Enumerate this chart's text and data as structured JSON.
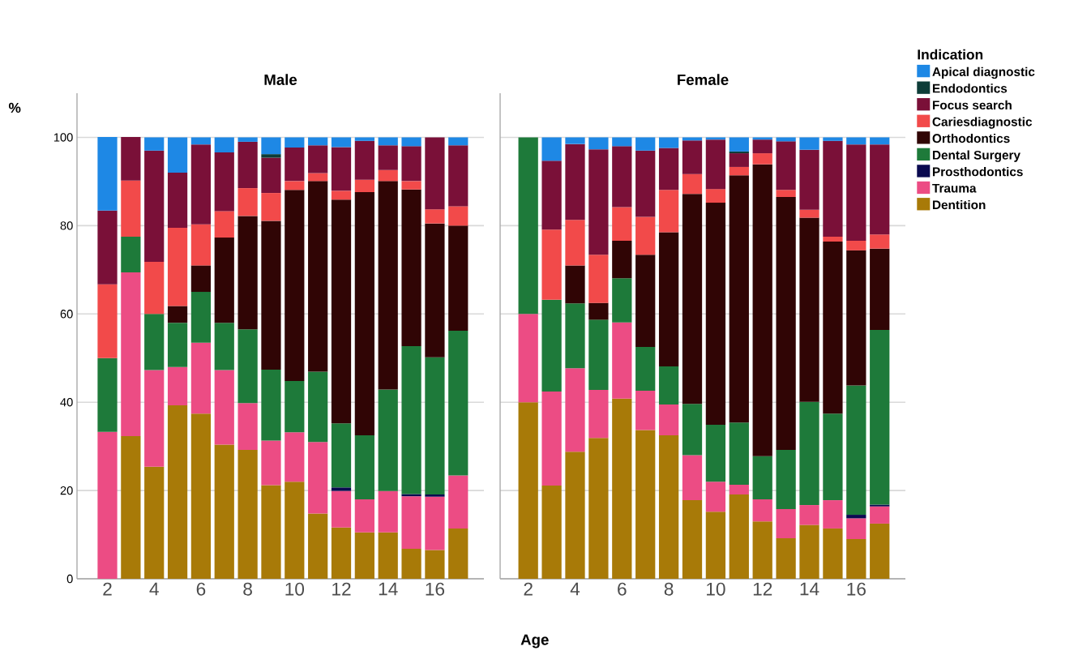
{
  "chart_data": [
    {
      "type": "bar",
      "stacked": true,
      "title": "Male",
      "xlabel": "Age",
      "ylabel": "%",
      "categories": [
        "2",
        null,
        "4",
        null,
        "6",
        null,
        "8",
        null,
        "10",
        null,
        "12",
        null,
        "14",
        null,
        "16",
        null
      ],
      "ylim": [
        0,
        110
      ],
      "yticks": [
        0,
        20,
        40,
        60,
        80,
        100
      ],
      "grid": "y",
      "series": [
        {
          "color": "#a87a08",
          "values": [
            null,
            32.3,
            25.4,
            39.3,
            37.4,
            30.4,
            29.2,
            21.2,
            22.0,
            14.8,
            11.6,
            10.5,
            10.5,
            6.8,
            6.5,
            11.4
          ]
        },
        {
          "color": "#ec4c84",
          "values": [
            33.3,
            37.1,
            21.9,
            8.7,
            16.1,
            16.9,
            10.6,
            10.1,
            11.2,
            16.2,
            8.3,
            7.5,
            9.4,
            11.9,
            12.1,
            12.0
          ]
        },
        {
          "color": "#0a0a50",
          "values": [
            null,
            null,
            null,
            null,
            null,
            null,
            null,
            null,
            null,
            null,
            0.8,
            null,
            null,
            0.5,
            0.5,
            null
          ]
        },
        {
          "color": "#1e7a3a",
          "values": [
            16.7,
            8.1,
            12.7,
            10.0,
            11.5,
            10.7,
            16.7,
            16.1,
            11.6,
            15.9,
            14.5,
            14.5,
            23.0,
            33.5,
            31.1,
            32.8
          ]
        },
        {
          "color": "#300505",
          "values": [
            null,
            null,
            null,
            3.8,
            6.0,
            19.3,
            25.7,
            33.7,
            43.3,
            43.2,
            50.7,
            55.1,
            47.2,
            35.5,
            30.3,
            23.8
          ]
        },
        {
          "color": "#f24a4a",
          "values": [
            16.7,
            12.7,
            11.8,
            17.7,
            9.3,
            6.0,
            6.3,
            6.3,
            2.0,
            1.8,
            2.0,
            2.8,
            2.5,
            1.9,
            3.2,
            4.4
          ]
        },
        {
          "color": "#7a1038",
          "values": [
            16.7,
            9.9,
            25.2,
            12.5,
            18.1,
            13.3,
            10.5,
            8.0,
            7.6,
            6.3,
            9.9,
            8.8,
            5.6,
            7.9,
            16.3,
            13.8
          ]
        },
        {
          "color": "#0d3d38",
          "values": [
            null,
            null,
            null,
            null,
            null,
            null,
            null,
            0.8,
            null,
            null,
            null,
            null,
            null,
            null,
            null,
            null
          ]
        },
        {
          "color": "#1e88e5",
          "values": [
            16.7,
            null,
            3.0,
            8.0,
            1.6,
            3.4,
            1.0,
            3.8,
            2.3,
            1.8,
            2.2,
            0.8,
            1.8,
            2.0,
            null,
            1.8
          ]
        }
      ]
    },
    {
      "type": "bar",
      "stacked": true,
      "title": "Female",
      "legend_title": "Indication",
      "legend": "right",
      "tick_labels": "x",
      "categories": [
        "2",
        null,
        "4",
        null,
        "6",
        null,
        "8",
        null,
        "10",
        null,
        "12",
        null,
        "14",
        null,
        "16",
        null
      ],
      "ylim": [
        0,
        110
      ],
      "yticks": [
        0,
        20,
        40,
        60,
        80,
        100
      ],
      "grid": "y",
      "series": [
        {
          "name": "Dentition",
          "color": "#a87a08",
          "values": [
            40.0,
            21.1,
            28.8,
            31.9,
            40.8,
            33.7,
            32.5,
            17.8,
            15.2,
            19.1,
            13.0,
            9.2,
            12.2,
            11.4,
            9.0,
            12.5
          ]
        },
        {
          "name": "Trauma",
          "color": "#ec4c84",
          "values": [
            20.0,
            21.3,
            18.9,
            10.9,
            17.3,
            8.9,
            7.0,
            10.2,
            6.8,
            2.2,
            5.0,
            6.6,
            4.5,
            6.4,
            4.7,
            3.9
          ]
        },
        {
          "name": "Prosthodontics",
          "color": "#0a0a50",
          "values": [
            null,
            null,
            null,
            null,
            null,
            null,
            null,
            null,
            null,
            null,
            null,
            null,
            null,
            null,
            0.8,
            0.4
          ]
        },
        {
          "name": "Dental Surgery",
          "color": "#1e7a3a",
          "values": [
            40.0,
            20.8,
            14.7,
            15.9,
            10.0,
            9.9,
            8.6,
            11.6,
            12.9,
            14.1,
            9.8,
            13.4,
            23.4,
            19.6,
            29.3,
            39.6
          ]
        },
        {
          "name": "Orthodontics",
          "color": "#300505",
          "values": [
            null,
            null,
            8.6,
            3.8,
            8.5,
            20.9,
            30.4,
            47.6,
            50.3,
            56.0,
            66.1,
            57.3,
            41.7,
            39.0,
            30.6,
            18.4
          ]
        },
        {
          "name": "Cariesdiagnostic",
          "color": "#f24a4a",
          "values": [
            null,
            15.9,
            10.3,
            10.9,
            7.6,
            8.6,
            9.6,
            4.5,
            3.1,
            1.9,
            2.5,
            1.6,
            1.8,
            1.1,
            2.2,
            3.2
          ]
        },
        {
          "name": "Focus search",
          "color": "#7a1038",
          "values": [
            null,
            15.6,
            17.2,
            23.9,
            13.8,
            15.0,
            9.5,
            7.6,
            11.2,
            3.1,
            3.1,
            11.0,
            13.6,
            21.7,
            21.8,
            20.4
          ]
        },
        {
          "name": "Endodontics",
          "color": "#0d3d38",
          "values": [
            null,
            null,
            null,
            null,
            null,
            null,
            null,
            null,
            null,
            0.4,
            null,
            null,
            null,
            null,
            null,
            null
          ]
        },
        {
          "name": "Apical diagnostic",
          "color": "#1e88e5",
          "values": [
            null,
            5.3,
            1.5,
            2.7,
            2.0,
            3.0,
            2.4,
            0.7,
            0.5,
            3.2,
            0.5,
            0.9,
            2.8,
            0.8,
            1.6,
            1.6
          ]
        }
      ]
    }
  ]
}
